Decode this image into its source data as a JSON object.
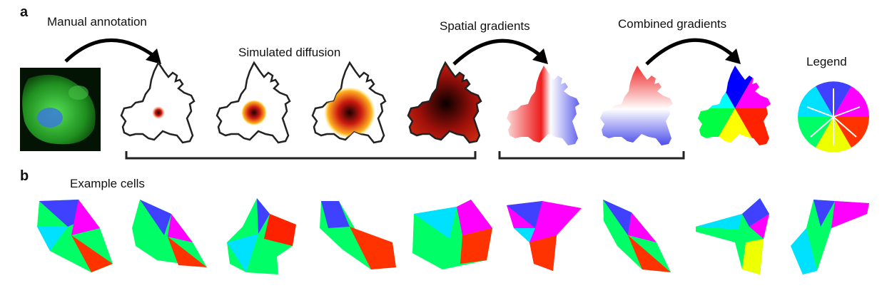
{
  "panels": {
    "a": {
      "letter": "a",
      "labels": {
        "manual_annotation": "Manual annotation",
        "simulated_diffusion": "Simulated diffusion",
        "spatial_gradients": "Spatial gradients",
        "combined_gradients": "Combined gradients",
        "legend": "Legend"
      }
    },
    "b": {
      "letter": "b",
      "labels": {
        "example_cells": "Example cells"
      }
    }
  },
  "colors": {
    "arrow": "#000000",
    "microscopy_green": "#2fbf2f",
    "nucleus_blue": "#3a7ad8",
    "diffusion_dark": "#1a0000",
    "diffusion_red": "#cc1a10",
    "diffusion_yellow": "#ffe23a",
    "gradient_red": "#ee1c1c",
    "gradient_blue": "#1a1ae6"
  },
  "icons": {
    "annotation_arrow": "curved-arrow-icon",
    "legend_arrows": "direction-arrow-icon"
  }
}
